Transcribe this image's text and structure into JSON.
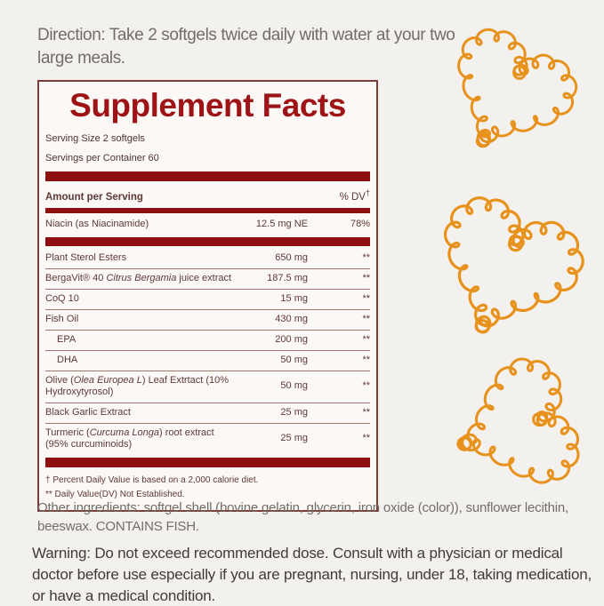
{
  "direction": {
    "text": "Direction: Take 2 softgels twice daily with water at your two large meals."
  },
  "supplement_facts": {
    "title": "Supplement Facts",
    "serving_size": "Serving Size 2 softgels",
    "servings_per_container": "Servings per Container 60",
    "header": {
      "amount_label": "Amount per Serving",
      "dv_label": "% DV",
      "dv_dagger": "†"
    },
    "niacin_row": {
      "name": [
        {
          "t": "Niacin (as Niacinamide)"
        }
      ],
      "amount": "12.5 mg NE",
      "dv": "78%"
    },
    "rows": [
      {
        "name": [
          {
            "t": "Plant Sterol Esters"
          }
        ],
        "amount": "650 mg",
        "dv": "**"
      },
      {
        "name": [
          {
            "t": "BergaVit® 40 "
          },
          {
            "t": "Citrus Bergamia",
            "i": true
          },
          {
            "t": " juice extract"
          }
        ],
        "amount": "187.5 mg",
        "dv": "**"
      },
      {
        "name": [
          {
            "t": "CoQ 10"
          }
        ],
        "amount": "15 mg",
        "dv": "**"
      },
      {
        "name": [
          {
            "t": "Fish Oil"
          }
        ],
        "amount": "430 mg",
        "dv": "**"
      },
      {
        "name": [
          {
            "t": "EPA"
          }
        ],
        "amount": "200 mg",
        "dv": "**",
        "indent": true
      },
      {
        "name": [
          {
            "t": "DHA"
          }
        ],
        "amount": "50 mg",
        "dv": "**",
        "indent": true
      },
      {
        "name": [
          {
            "t": "Olive ("
          },
          {
            "t": "Olea Europea L",
            "i": true
          },
          {
            "t": ") Leaf Extrtact (10%"
          },
          {
            "br": true
          },
          {
            "t": "Hydroxytyrosol)"
          }
        ],
        "amount": "50 mg",
        "dv": "**"
      },
      {
        "name": [
          {
            "t": "Black Garlic Extract"
          }
        ],
        "amount": "25 mg",
        "dv": "**"
      },
      {
        "name": [
          {
            "t": "Turmeric ("
          },
          {
            "t": "Curcuma Longa",
            "i": true
          },
          {
            "t": ") root extract"
          },
          {
            "br": true
          },
          {
            "t": "(95% curcuminoids)"
          }
        ],
        "amount": "25 mg",
        "dv": "**"
      }
    ],
    "footnotes": [
      "† Percent Daily Value is based on a 2,000 calorie diet.",
      "** Daily Value(DV) Not Established."
    ]
  },
  "other_ingredients": {
    "text": "Other ingredients: softgel shell (bovine gelatin, glycerin, iron oxide (color)), sunflower lecithin, beeswax. CONTAINS FISH."
  },
  "warning": {
    "text": "Warning: Do not exceed recommended dose. Consult with a physician or medical doctor before use especially if you are pregnant, nursing, under 18, taking medication, or have a medical condition."
  },
  "decor": {
    "hearts": {
      "icon": "curly-heart-icon",
      "count": 3,
      "color": "#E8921E"
    }
  },
  "colors": {
    "accent_red": "#8D0F10",
    "title_red": "#9E1315",
    "table_text": "#5E3936",
    "panel_border": "#7E3C38",
    "body_text": "#716D69",
    "warning_text": "#3F3B38",
    "heart_orange": "#E8921E"
  }
}
